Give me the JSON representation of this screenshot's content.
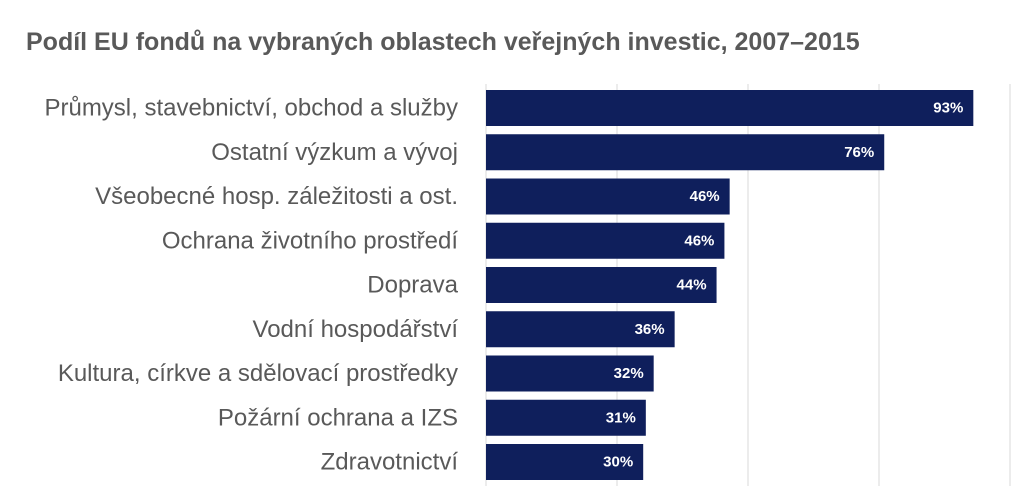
{
  "chart_data": {
    "type": "bar",
    "orientation": "horizontal",
    "title": "Podíl EU fondů na vybraných oblastech veřejných investic, 2007–2015",
    "categories": [
      "Průmysl, stavebnictví, obchod a služby",
      "Ostatní výzkum a vývoj",
      "Všeobecné hosp. záležitosti a ost.",
      "Ochrana životního prostředí",
      "Doprava",
      "Vodní hospodářství",
      "Kultura, církve a sdělovací prostředky",
      "Požární ochrana a IZS",
      "Zdravotnictví"
    ],
    "values": [
      0.93,
      0.76,
      0.465,
      0.455,
      0.44,
      0.36,
      0.32,
      0.305,
      0.3
    ],
    "data_labels": [
      "93%",
      "76%",
      "46%",
      "46%",
      "44%",
      "36%",
      "32%",
      "31%",
      "30%"
    ],
    "xlim": [
      0,
      1
    ],
    "grid": true,
    "legend": "none",
    "colors": {
      "bar": "#0f1f5c",
      "gridline": "#d9d9d9",
      "label": "#595959",
      "value_label": "#ffffff"
    }
  }
}
